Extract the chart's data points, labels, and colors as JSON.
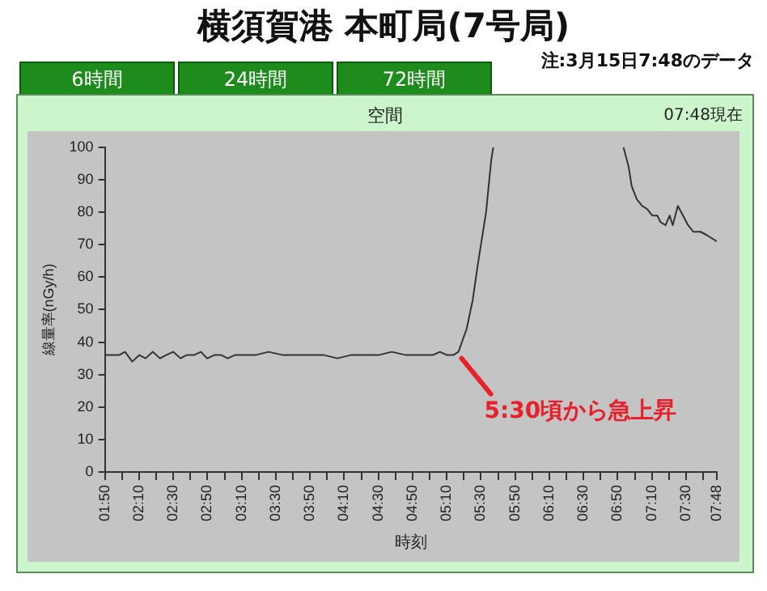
{
  "chart_data": {
    "type": "line",
    "title": "横須賀港 本町局(7号局)",
    "subtitle": "空間",
    "xlabel": "時刻",
    "ylabel": "線量率(nGy/h)",
    "annotations": [
      "注:3月15日7:48のデータ",
      "6時間",
      "24時間",
      "72時間",
      "07:48現在",
      {
        "text": "5:30頃から急上昇",
        "x": 5.28,
        "y": 37
      }
    ],
    "xlim": [
      1.8333,
      7.8
    ],
    "xticks": [
      {
        "value": 1.8333,
        "label": "01:50"
      },
      {
        "value": 2,
        "label": null
      },
      {
        "value": 2.1667,
        "label": "02:10"
      },
      {
        "value": 2.3333,
        "label": null
      },
      {
        "value": 2.5,
        "label": "02:30"
      },
      {
        "value": 2.6667,
        "label": null
      },
      {
        "value": 2.8333,
        "label": "02:50"
      },
      {
        "value": 3,
        "label": null
      },
      {
        "value": 3.1667,
        "label": "03:10"
      },
      {
        "value": 3.3333,
        "label": null
      },
      {
        "value": 3.5,
        "label": "03:30"
      },
      {
        "value": 3.6667,
        "label": null
      },
      {
        "value": 3.8333,
        "label": "03:50"
      },
      {
        "value": 4,
        "label": null
      },
      {
        "value": 4.1667,
        "label": "04:10"
      },
      {
        "value": 4.3333,
        "label": null
      },
      {
        "value": 4.5,
        "label": "04:30"
      },
      {
        "value": 4.6667,
        "label": null
      },
      {
        "value": 4.8333,
        "label": "04:50"
      },
      {
        "value": 5,
        "label": null
      },
      {
        "value": 5.1667,
        "label": "05:10"
      },
      {
        "value": 5.3333,
        "label": null
      },
      {
        "value": 5.5,
        "label": "05:30"
      },
      {
        "value": 5.6667,
        "label": null
      },
      {
        "value": 5.8333,
        "label": "05:50"
      },
      {
        "value": 6,
        "label": null
      },
      {
        "value": 6.1667,
        "label": "06:10"
      },
      {
        "value": 6.3333,
        "label": null
      },
      {
        "value": 6.5,
        "label": "06:30"
      },
      {
        "value": 6.6667,
        "label": null
      },
      {
        "value": 6.8333,
        "label": "06:50"
      },
      {
        "value": 7,
        "label": null
      },
      {
        "value": 7.1667,
        "label": "07:10"
      },
      {
        "value": 7.3333,
        "label": null
      },
      {
        "value": 7.5,
        "label": "07:30"
      },
      {
        "value": 7.6667,
        "label": null
      },
      {
        "value": 7.8,
        "label": "07:48"
      }
    ],
    "ylim": [
      0,
      100
    ],
    "yticks": [
      0,
      10,
      20,
      30,
      40,
      50,
      60,
      70,
      80,
      90,
      100
    ],
    "grid": false,
    "legend": false,
    "marker": "none",
    "line_style": "solid",
    "series": [
      {
        "color": "#333333",
        "x": [
          1.8333,
          1.9,
          1.97,
          2.03,
          2.1,
          2.17,
          2.23,
          2.3,
          2.37,
          2.43,
          2.5,
          2.57,
          2.63,
          2.7,
          2.77,
          2.83,
          2.9,
          2.97,
          3.03,
          3.1,
          3.17,
          3.3,
          3.43,
          3.57,
          3.7,
          3.83,
          3.97,
          4.1,
          4.23,
          4.37,
          4.5,
          4.63,
          4.77,
          4.9,
          5.03,
          5.1,
          5.17,
          5.23,
          5.28,
          5.36,
          5.42,
          5.47,
          5.55,
          5.6,
          5.62,
          5.7,
          6.89,
          6.94,
          6.97,
          7.02,
          7.07,
          7.12,
          7.17,
          7.22,
          7.25,
          7.3,
          7.34,
          7.37,
          7.42,
          7.47,
          7.52,
          7.57,
          7.64,
          7.7,
          7.75,
          7.8
        ],
        "values": [
          36,
          36,
          36,
          37,
          34,
          36,
          35,
          37,
          35,
          36,
          37,
          35,
          36,
          36,
          37,
          35,
          36,
          36,
          35,
          36,
          36,
          36,
          37,
          36,
          36,
          36,
          36,
          35,
          36,
          36,
          36,
          37,
          36,
          36,
          36,
          37,
          36,
          36,
          37,
          44,
          53,
          64,
          80,
          96,
          100,
          null,
          100,
          94,
          88,
          84,
          82,
          81,
          79,
          79,
          77,
          76,
          79,
          76,
          82,
          79,
          76,
          74,
          74,
          73,
          72,
          71
        ]
      }
    ]
  }
}
